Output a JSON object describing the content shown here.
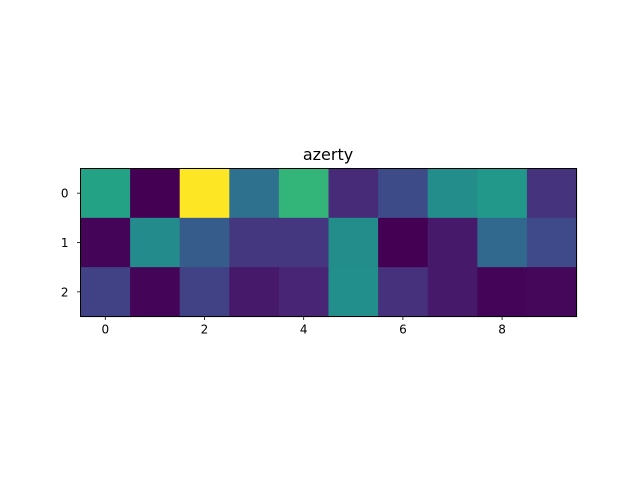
{
  "chart_data": {
    "type": "heatmap",
    "title": "azerty",
    "xlabel": "",
    "ylabel": "",
    "colormap": "viridis",
    "grid": false,
    "rows": [
      0,
      1,
      2
    ],
    "cols": [
      0,
      1,
      2,
      3,
      4,
      5,
      6,
      7,
      8,
      9
    ],
    "xticks": [
      0,
      2,
      4,
      6,
      8
    ],
    "yticks": [
      0,
      1,
      2
    ],
    "values": [
      [
        0.65,
        0.0,
        1.0,
        0.42,
        0.74,
        0.14,
        0.26,
        0.55,
        0.6,
        0.17
      ],
      [
        0.01,
        0.54,
        0.33,
        0.18,
        0.18,
        0.55,
        0.0,
        0.08,
        0.38,
        0.25
      ],
      [
        0.22,
        0.01,
        0.22,
        0.08,
        0.12,
        0.56,
        0.16,
        0.08,
        0.01,
        0.02
      ]
    ]
  }
}
